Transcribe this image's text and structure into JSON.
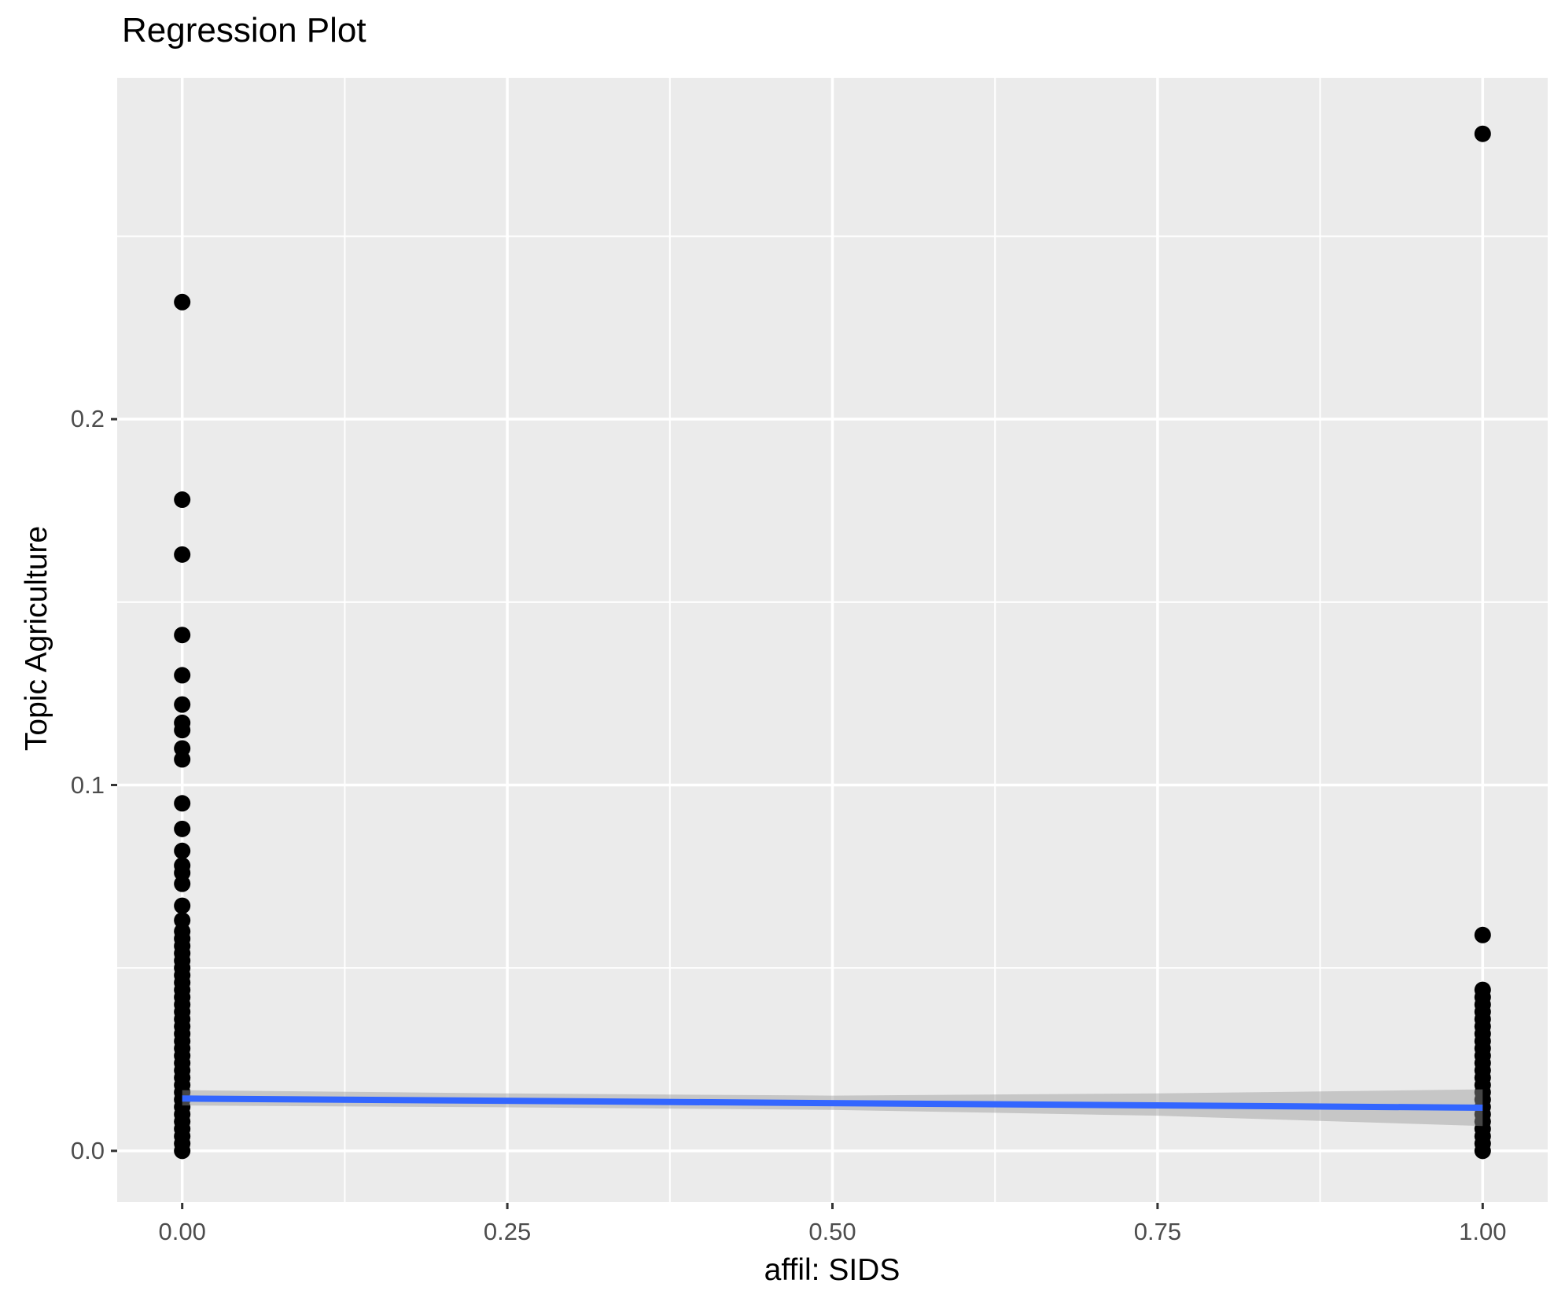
{
  "chart_data": {
    "type": "scatter",
    "title": "Regression Plot",
    "xlabel": "affil: SIDS",
    "ylabel": "Topic Agriculture",
    "xlim": [
      -0.05,
      1.05
    ],
    "ylim": [
      -0.014,
      0.2933
    ],
    "x_ticks": [
      0.0,
      0.25,
      0.5,
      0.75,
      1.0
    ],
    "x_tick_labels": [
      "0.00",
      "0.25",
      "0.50",
      "0.75",
      "1.00"
    ],
    "y_ticks": [
      0.0,
      0.1,
      0.2
    ],
    "y_tick_labels": [
      "0.0",
      "0.1",
      "0.2"
    ],
    "x_minor_ticks": [
      0.125,
      0.375,
      0.625,
      0.875
    ],
    "y_minor_ticks": [
      0.05,
      0.15,
      0.25
    ],
    "grid": "on",
    "legend": "none",
    "panel_bg": "#EBEBEB",
    "grid_color": "#FFFFFF",
    "tick_mark_color": "#333333",
    "tick_label_color": "#4D4D4D",
    "point_color": "#000000",
    "series": [
      {
        "name": "observations-affil-0",
        "type": "points",
        "x": 0,
        "y_values": [
          0.232,
          0.178,
          0.163,
          0.141,
          0.13,
          0.122,
          0.117,
          0.115,
          0.11,
          0.107,
          0.095,
          0.088,
          0.082,
          0.078,
          0.076,
          0.073,
          0.067,
          0.063,
          0.06,
          0.058,
          0.056,
          0.054,
          0.052,
          0.05,
          0.048,
          0.046,
          0.044,
          0.042,
          0.04,
          0.038,
          0.036,
          0.034,
          0.032,
          0.03,
          0.028,
          0.026,
          0.024,
          0.022,
          0.02,
          0.018,
          0.016,
          0.014,
          0.012,
          0.01,
          0.008,
          0.006,
          0.004,
          0.002,
          0.0
        ]
      },
      {
        "name": "observations-affil-1",
        "type": "points",
        "x": 1,
        "y_values": [
          0.278,
          0.059,
          0.044,
          0.042,
          0.04,
          0.038,
          0.036,
          0.034,
          0.032,
          0.03,
          0.028,
          0.026,
          0.024,
          0.022,
          0.02,
          0.018,
          0.016,
          0.014,
          0.012,
          0.01,
          0.008,
          0.006,
          0.004,
          0.002,
          0.0
        ]
      }
    ],
    "regression_line": {
      "name": "fit-line",
      "color": "#3366FF",
      "points": [
        [
          0,
          0.0143
        ],
        [
          1,
          0.0118
        ]
      ]
    },
    "confidence_band": {
      "name": "fit-confidence-band",
      "color": "#999999",
      "opacity": 0.45,
      "upper": [
        [
          0,
          0.0166
        ],
        [
          0.25,
          0.0157
        ],
        [
          0.5,
          0.0151
        ],
        [
          0.75,
          0.0157
        ],
        [
          1,
          0.0168
        ]
      ],
      "lower": [
        [
          0,
          0.0124
        ],
        [
          0.25,
          0.0119
        ],
        [
          0.5,
          0.0112
        ],
        [
          0.75,
          0.0096
        ],
        [
          1,
          0.0068
        ]
      ]
    }
  }
}
